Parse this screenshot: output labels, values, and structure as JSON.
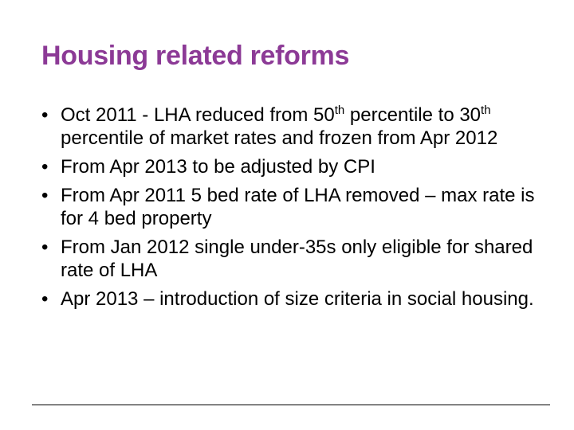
{
  "slide": {
    "title": "Housing related reforms",
    "title_color": "#8c3a96",
    "bullet_symbol": "•",
    "bullets": [
      {
        "parts": [
          {
            "text": "Oct 2011 - LHA reduced from 50"
          },
          {
            "text": "th",
            "sup": true
          },
          {
            "text": " percentile to 30"
          },
          {
            "text": "th",
            "sup": true
          },
          {
            "text": " percentile of market rates and frozen from Apr 2012"
          }
        ]
      },
      {
        "parts": [
          {
            "text": "From Apr 2013 to be adjusted by CPI"
          }
        ]
      },
      {
        "parts": [
          {
            "text": "From Apr 2011 5 bed rate of LHA removed – max rate is for 4 bed property"
          }
        ]
      },
      {
        "parts": [
          {
            "text": "From Jan 2012 single under-35s only eligible for shared rate of LHA"
          }
        ]
      },
      {
        "parts": [
          {
            "text": "Apr 2013 – introduction of size criteria in social housing."
          }
        ]
      }
    ]
  }
}
